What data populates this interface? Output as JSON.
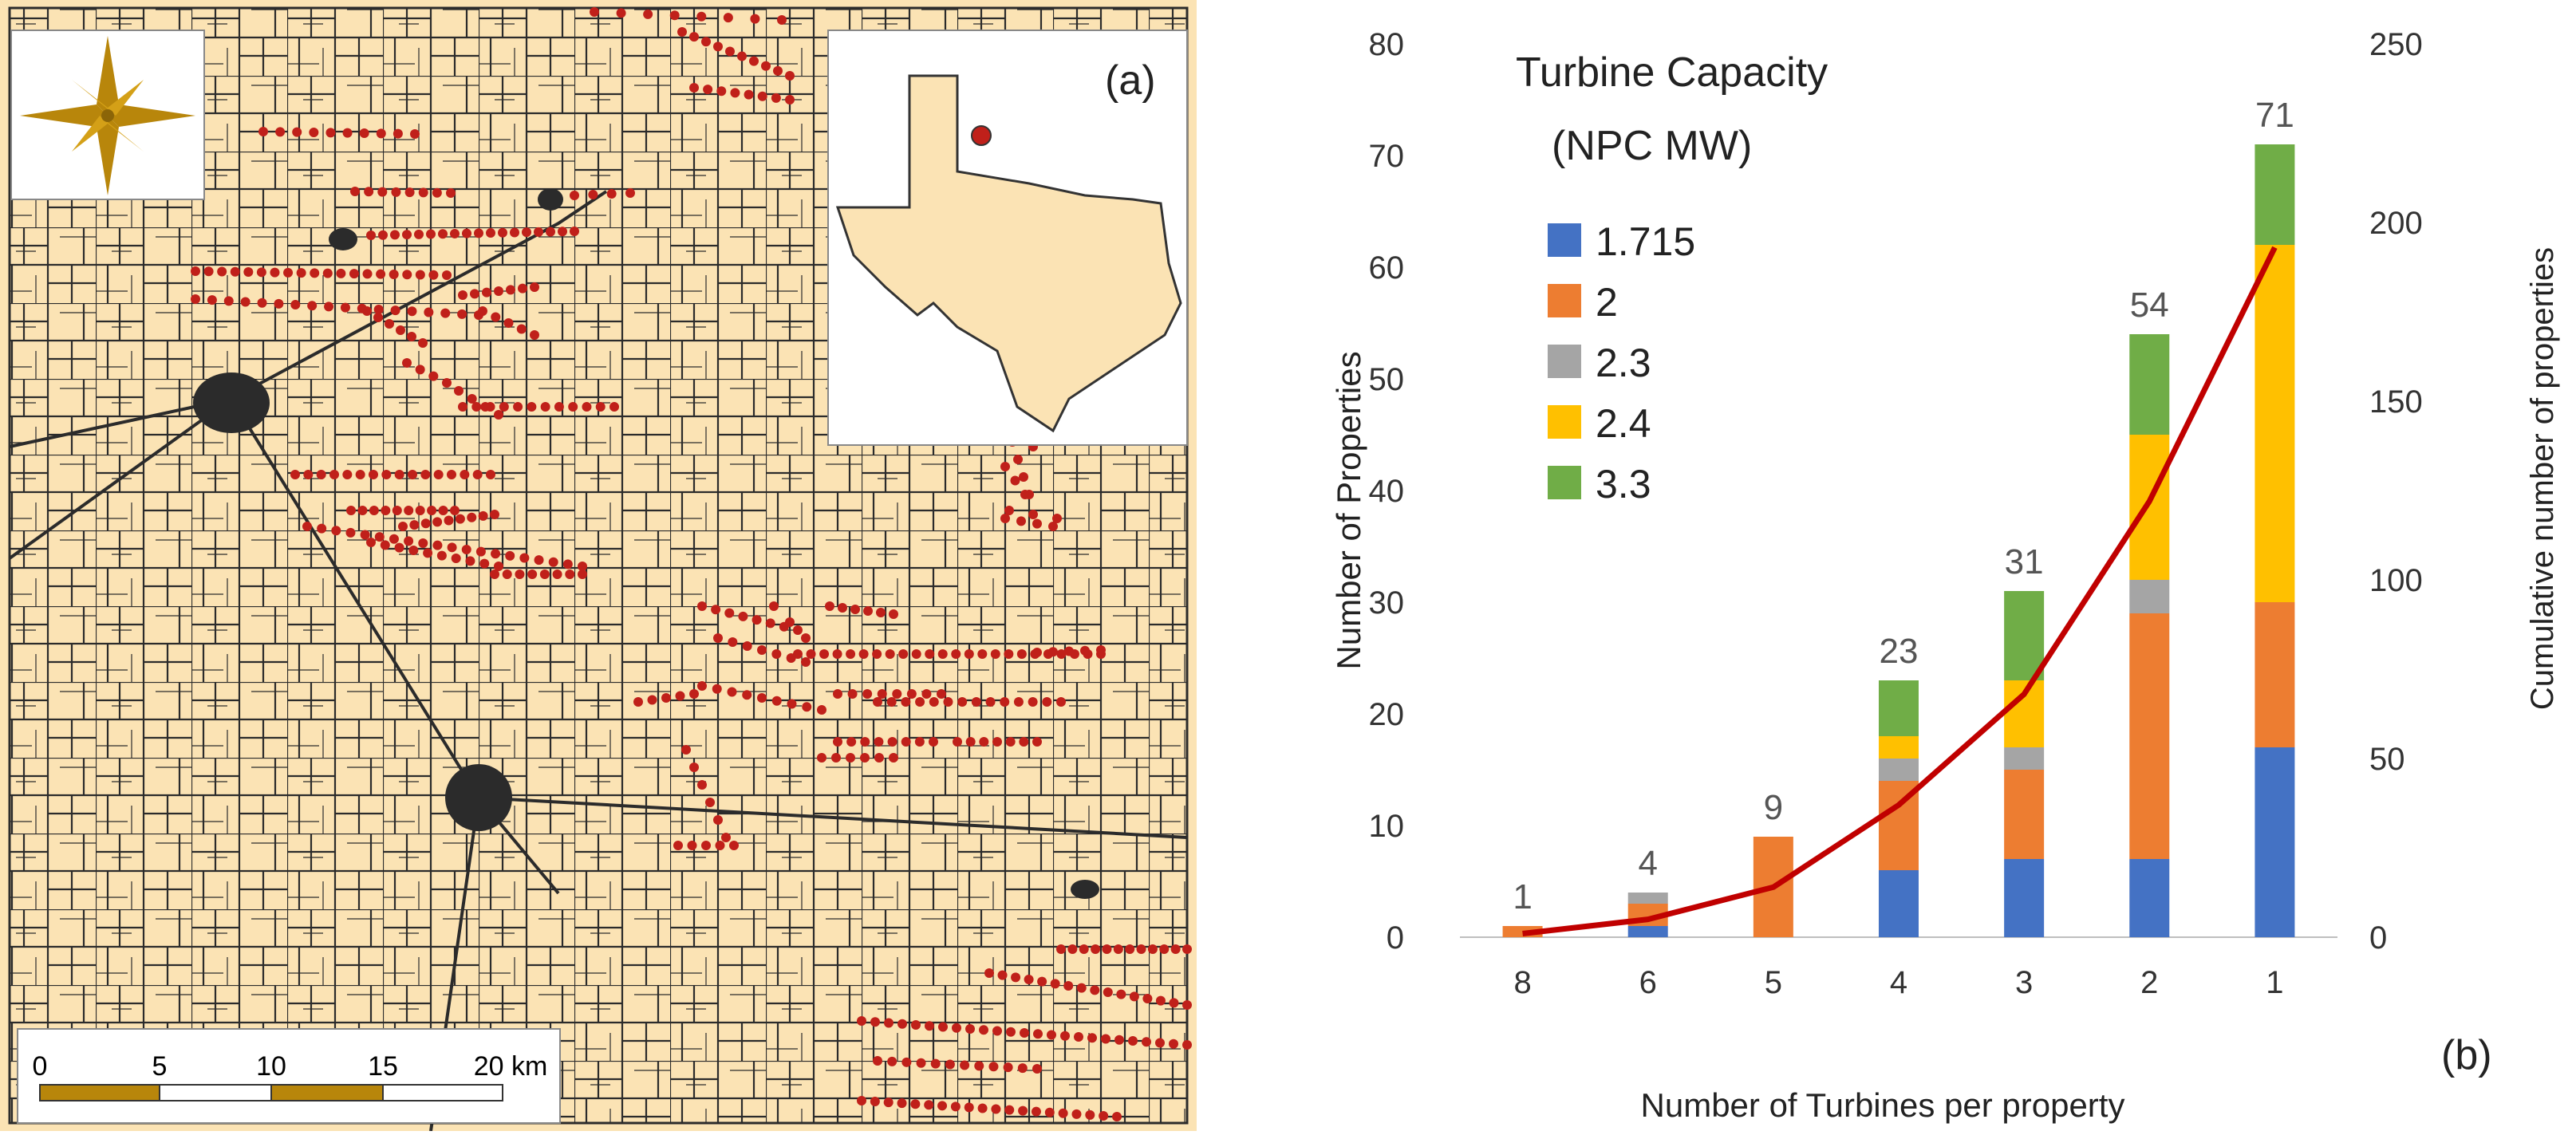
{
  "map": {
    "panel_label": "(a)",
    "compass": "compass-rose",
    "scale_bar": {
      "ticks": [
        "0",
        "5",
        "10",
        "15",
        "20 km"
      ]
    },
    "inset": "texas-outline",
    "colors": {
      "land": "#fbe3b4",
      "roads": "#2b2b2b",
      "turbines": "#c0201a",
      "compass": "#b8860b",
      "texas": "#fbe3b4"
    }
  },
  "chart_data": {
    "type": "bar",
    "stacked": true,
    "panel_label": "(b)",
    "xlabel": "Number of Turbines per property",
    "ylabel": "Number of Properties",
    "y2label": "Cumulative number of properties",
    "ylim": [
      0,
      80
    ],
    "y2lim": [
      0,
      250
    ],
    "yticks": [
      0,
      10,
      20,
      30,
      40,
      50,
      60,
      70,
      80
    ],
    "y2ticks": [
      0,
      50,
      100,
      150,
      200,
      250
    ],
    "categories": [
      "8",
      "6",
      "5",
      "4",
      "3",
      "2",
      "1"
    ],
    "legend_title": [
      "Turbine Capacity",
      "(NPC MW)"
    ],
    "series": [
      {
        "name": "1.715",
        "color": "#4472c4",
        "values": [
          0,
          1,
          0,
          6,
          7,
          7,
          17
        ]
      },
      {
        "name": "2",
        "color": "#ed7d31",
        "values": [
          1,
          2,
          9,
          8,
          8,
          22,
          13
        ]
      },
      {
        "name": "2.3",
        "color": "#a5a5a5",
        "values": [
          0,
          1,
          0,
          2,
          2,
          3,
          0
        ]
      },
      {
        "name": "2.4",
        "color": "#ffc000",
        "values": [
          0,
          0,
          0,
          2,
          6,
          13,
          32
        ]
      },
      {
        "name": "3.3",
        "color": "#70ad47",
        "values": [
          0,
          0,
          0,
          5,
          8,
          9,
          9
        ]
      }
    ],
    "totals": [
      "1",
      "4",
      "9",
      "23",
      "31",
      "54",
      "71"
    ],
    "cumulative": {
      "name": "Cumulative",
      "color": "#c00000",
      "values": [
        1,
        5,
        14,
        37,
        68,
        122,
        193
      ]
    }
  }
}
